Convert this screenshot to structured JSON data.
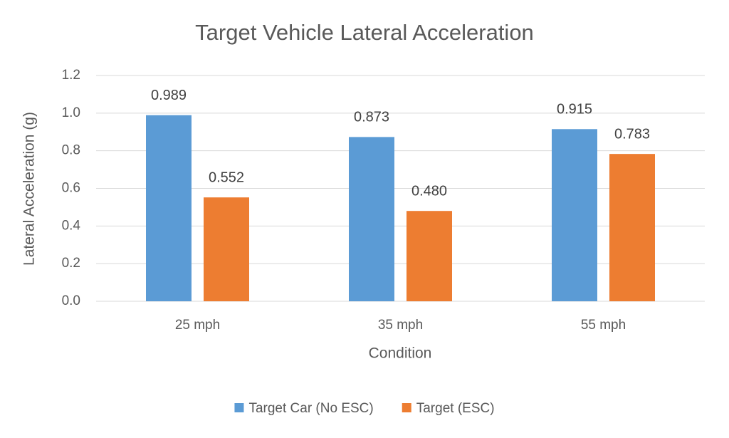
{
  "chart_data": {
    "type": "bar",
    "title": "Target Vehicle Lateral Acceleration",
    "x_label": "Condition",
    "y_label": "Lateral Acceleration (g)",
    "categories": [
      "25 mph",
      "35 mph",
      "55 mph"
    ],
    "series": [
      {
        "name": "Target Car (No ESC)",
        "color": "#5b9bd5",
        "values": [
          0.989,
          0.873,
          0.915
        ],
        "value_labels": [
          "0.989",
          "0.873",
          "0.915"
        ]
      },
      {
        "name": "Target (ESC)",
        "color": "#ed7d31",
        "values": [
          0.552,
          0.48,
          0.783
        ],
        "value_labels": [
          "0.552",
          "0.480",
          "0.783"
        ]
      }
    ],
    "ylim": [
      0,
      1.2
    ],
    "yticks": [
      {
        "value": 0,
        "label": "0.0"
      },
      0.2,
      0.4,
      0.6,
      0.8,
      {
        "value": 1,
        "label": "1.0"
      },
      1.2
    ],
    "grid": true,
    "legend": "bottom"
  }
}
